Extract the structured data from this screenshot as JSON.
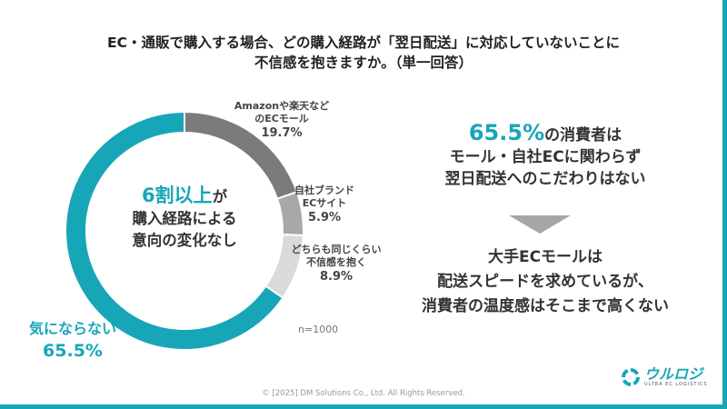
{
  "title_lines": [
    "EC・通販で購入する場合、どの購入経路が「翌日配送」に対応していないことに",
    "不信感を抱きますか。（単一回答）"
  ],
  "center_text": {
    "highlight": "6割以上",
    "line1_suffix": "が",
    "line2": "購入経路による",
    "line3": "意向の変化なし"
  },
  "sample_size": "n=1000",
  "message1": {
    "highlight": "65.5%",
    "line1_suffix": "の消費者は",
    "line2": "モール・自社ECに関わらず",
    "line3": "翌日配送へのこだわりはない"
  },
  "message2": {
    "line1": "大手ECモールは",
    "line2": "配送スピードを求めているが、",
    "line3": "消費者の温度感はそこまで高くない"
  },
  "copyright": "© [2025] DM Solutions Co., Ltd. All Rights Reserved.",
  "logo": {
    "name": "ウルロジ",
    "tagline": "ULTRA EC LOGISTICS"
  },
  "chart_data": {
    "type": "pie",
    "donut": true,
    "title": "EC・通販で購入する場合、どの購入経路が「翌日配送」に対応していないことに不信感を抱きますか。（単一回答）",
    "slices": [
      {
        "label_lines": [
          "Amazonや楽天など",
          "のECモール"
        ],
        "value": 19.7,
        "pct": "19.7%",
        "color": "#7b7b7b"
      },
      {
        "label_lines": [
          "自社ブランド",
          "ECサイト"
        ],
        "value": 5.9,
        "pct": "5.9%",
        "color": "#a8a8a8"
      },
      {
        "label_lines": [
          "どちらも同じくらい",
          "不信感を抱く"
        ],
        "value": 8.9,
        "pct": "8.9%",
        "color": "#dadada"
      },
      {
        "label_lines": [
          "気にならない"
        ],
        "value": 65.5,
        "pct": "65.5%",
        "color": "#17a6b7"
      }
    ]
  }
}
